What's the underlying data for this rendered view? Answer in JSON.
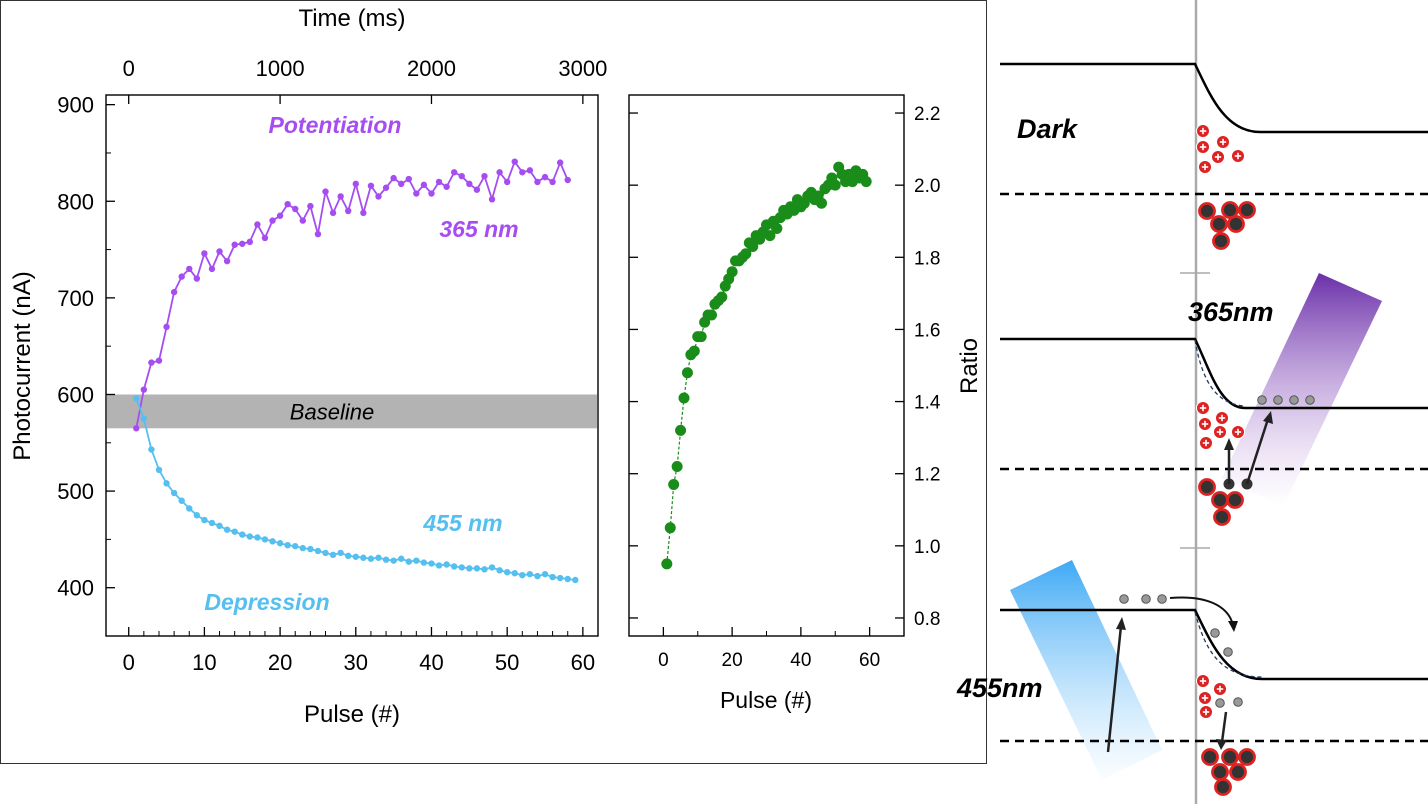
{
  "chart_data": [
    {
      "type": "line",
      "xlabel": "Pulse (#)",
      "xlim": [
        -3,
        62
      ],
      "x_ticks": [
        0,
        10,
        20,
        30,
        40,
        50,
        60
      ],
      "ylabel": "Photocurrent (nA)",
      "ylim": [
        350,
        910
      ],
      "y_ticks": [
        400,
        500,
        600,
        700,
        800,
        900
      ],
      "top_axis": {
        "label": "Time (ms)",
        "ticks": [
          0,
          1000,
          2000,
          3000
        ],
        "ms_per_pulse": 50
      },
      "baseline_band": {
        "label": "Baseline",
        "range": [
          565,
          600
        ]
      },
      "annotations": {
        "potentiation": "Potentiation",
        "wl_365": "365 nm",
        "wl_455": "455 nm",
        "depression": "Depression"
      },
      "series": [
        {
          "color": "#a64df2",
          "values": [
            [
              1,
              565
            ],
            [
              2,
              605
            ],
            [
              3,
              633
            ],
            [
              4,
              635
            ],
            [
              5,
              670
            ],
            [
              6,
              706
            ],
            [
              7,
              722
            ],
            [
              8,
              730
            ],
            [
              9,
              720
            ],
            [
              10,
              746
            ],
            [
              11,
              730
            ],
            [
              12,
              748
            ],
            [
              13,
              738
            ],
            [
              14,
              755
            ],
            [
              15,
              756
            ],
            [
              16,
              758
            ],
            [
              17,
              776
            ],
            [
              18,
              762
            ],
            [
              19,
              780
            ],
            [
              20,
              785
            ],
            [
              21,
              797
            ],
            [
              22,
              792
            ],
            [
              23,
              780
            ],
            [
              24,
              795
            ],
            [
              25,
              766
            ],
            [
              26,
              810
            ],
            [
              27,
              788
            ],
            [
              28,
              805
            ],
            [
              29,
              790
            ],
            [
              30,
              818
            ],
            [
              31,
              788
            ],
            [
              32,
              816
            ],
            [
              33,
              805
            ],
            [
              34,
              814
            ],
            [
              35,
              824
            ],
            [
              36,
              818
            ],
            [
              37,
              823
            ],
            [
              38,
              808
            ],
            [
              39,
              817
            ],
            [
              40,
              808
            ],
            [
              41,
              820
            ],
            [
              42,
              815
            ],
            [
              43,
              830
            ],
            [
              44,
              826
            ],
            [
              45,
              818
            ],
            [
              46,
              812
            ],
            [
              47,
              826
            ],
            [
              48,
              802
            ],
            [
              49,
              830
            ],
            [
              50,
              820
            ],
            [
              51,
              841
            ],
            [
              52,
              830
            ],
            [
              53,
              832
            ],
            [
              54,
              820
            ],
            [
              55,
              825
            ],
            [
              56,
              820
            ],
            [
              57,
              840
            ],
            [
              58,
              822
            ]
          ]
        },
        {
          "color": "#55bff0",
          "values": [
            [
              1,
              596
            ],
            [
              2,
              575
            ],
            [
              3,
              543
            ],
            [
              4,
              522
            ],
            [
              5,
              508
            ],
            [
              6,
              498
            ],
            [
              7,
              490
            ],
            [
              8,
              482
            ],
            [
              9,
              475
            ],
            [
              10,
              470
            ],
            [
              11,
              467
            ],
            [
              12,
              464
            ],
            [
              13,
              460
            ],
            [
              14,
              458
            ],
            [
              15,
              455
            ],
            [
              16,
              453
            ],
            [
              17,
              452
            ],
            [
              18,
              450
            ],
            [
              19,
              448
            ],
            [
              20,
              446
            ],
            [
              21,
              444
            ],
            [
              22,
              443
            ],
            [
              23,
              441
            ],
            [
              24,
              440
            ],
            [
              25,
              438
            ],
            [
              26,
              436
            ],
            [
              27,
              434
            ],
            [
              28,
              436
            ],
            [
              29,
              433
            ],
            [
              30,
              432
            ],
            [
              31,
              431
            ],
            [
              32,
              430
            ],
            [
              33,
              431
            ],
            [
              34,
              429
            ],
            [
              35,
              428
            ],
            [
              36,
              430
            ],
            [
              37,
              427
            ],
            [
              38,
              428
            ],
            [
              39,
              426
            ],
            [
              40,
              425
            ],
            [
              41,
              423
            ],
            [
              42,
              424
            ],
            [
              43,
              422
            ],
            [
              44,
              421
            ],
            [
              45,
              420
            ],
            [
              46,
              420
            ],
            [
              47,
              419
            ],
            [
              48,
              421
            ],
            [
              49,
              418
            ],
            [
              50,
              416
            ],
            [
              51,
              415
            ],
            [
              52,
              413
            ],
            [
              53,
              414
            ],
            [
              54,
              412
            ],
            [
              55,
              414
            ],
            [
              56,
              411
            ],
            [
              57,
              410
            ],
            [
              58,
              409
            ],
            [
              59,
              408
            ]
          ]
        }
      ]
    },
    {
      "type": "scatter",
      "xlabel": "Pulse (#)",
      "xlim": [
        -10,
        70
      ],
      "x_ticks": [
        0,
        20,
        40,
        60
      ],
      "ylabel": "Ratio",
      "ylim": [
        0.75,
        2.25
      ],
      "y_ticks": [
        0.8,
        1.0,
        1.2,
        1.4,
        1.6,
        1.8,
        2.0,
        2.2
      ],
      "series": [
        {
          "color": "#1a8c1a",
          "values": [
            [
              1,
              0.95
            ],
            [
              2,
              1.05
            ],
            [
              3,
              1.17
            ],
            [
              4,
              1.22
            ],
            [
              5,
              1.32
            ],
            [
              6,
              1.41
            ],
            [
              7,
              1.48
            ],
            [
              8,
              1.53
            ],
            [
              9,
              1.54
            ],
            [
              10,
              1.58
            ],
            [
              11,
              1.58
            ],
            [
              12,
              1.62
            ],
            [
              13,
              1.64
            ],
            [
              14,
              1.64
            ],
            [
              15,
              1.67
            ],
            [
              16,
              1.68
            ],
            [
              17,
              1.69
            ],
            [
              18,
              1.72
            ],
            [
              19,
              1.74
            ],
            [
              20,
              1.76
            ],
            [
              21,
              1.79
            ],
            [
              22,
              1.79
            ],
            [
              23,
              1.8
            ],
            [
              24,
              1.81
            ],
            [
              25,
              1.84
            ],
            [
              26,
              1.83
            ],
            [
              27,
              1.86
            ],
            [
              28,
              1.85
            ],
            [
              29,
              1.87
            ],
            [
              30,
              1.89
            ],
            [
              31,
              1.86
            ],
            [
              32,
              1.9
            ],
            [
              33,
              1.88
            ],
            [
              34,
              1.91
            ],
            [
              35,
              1.93
            ],
            [
              36,
              1.92
            ],
            [
              37,
              1.94
            ],
            [
              38,
              1.93
            ],
            [
              39,
              1.96
            ],
            [
              40,
              1.94
            ],
            [
              41,
              1.95
            ],
            [
              42,
              1.97
            ],
            [
              43,
              1.98
            ],
            [
              44,
              1.96
            ],
            [
              45,
              1.97
            ],
            [
              46,
              1.95
            ],
            [
              47,
              1.99
            ],
            [
              48,
              2.0
            ],
            [
              49,
              2.02
            ],
            [
              50,
              2.0
            ],
            [
              51,
              2.05
            ],
            [
              52,
              2.03
            ],
            [
              53,
              2.01
            ],
            [
              54,
              2.03
            ],
            [
              55,
              2.01
            ],
            [
              56,
              2.04
            ],
            [
              57,
              2.02
            ],
            [
              58,
              2.03
            ],
            [
              59,
              2.01
            ]
          ]
        }
      ]
    }
  ],
  "band_diagram": {
    "labels": {
      "dark": "Dark",
      "uv": "365nm",
      "blue": "455nm"
    },
    "colors": {
      "uv_beam": "#7d3bb5",
      "blue_beam": "#3fa9f5",
      "ion": "#dd2222",
      "electron": "#999999"
    }
  }
}
